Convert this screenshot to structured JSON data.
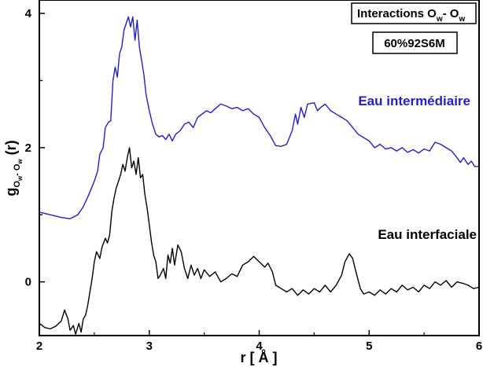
{
  "chart_data": {
    "type": "line",
    "title": "Interactions O",
    "title_parts": [
      "Interactions O",
      "w",
      "- O",
      "w"
    ],
    "sample_label": "60%92S6M",
    "xlabel": "r [ Å ]",
    "ylabel_parts": [
      "g",
      "O",
      "w",
      "- O",
      "w",
      " (r)"
    ],
    "xlim": [
      2,
      6
    ],
    "ylim": [
      -0.8,
      4.2
    ],
    "x_ticks": [
      2,
      3,
      4,
      5,
      6
    ],
    "y_ticks": [
      0,
      2,
      4
    ],
    "x_tick_labels": [
      "2",
      "3",
      "4",
      "5",
      "6"
    ],
    "y_tick_labels": [
      "0",
      "2",
      "4"
    ],
    "grid": false,
    "series": [
      {
        "name": "Eau intermédiaire",
        "color": "#1f1fd0",
        "points": [
          [
            2.0,
            1.04
          ],
          [
            2.1,
            1.0
          ],
          [
            2.2,
            0.96
          ],
          [
            2.28,
            0.94
          ],
          [
            2.35,
            1.0
          ],
          [
            2.4,
            1.12
          ],
          [
            2.45,
            1.3
          ],
          [
            2.5,
            1.5
          ],
          [
            2.53,
            1.65
          ],
          [
            2.55,
            1.9
          ],
          [
            2.58,
            2.0
          ],
          [
            2.6,
            2.3
          ],
          [
            2.63,
            2.38
          ],
          [
            2.65,
            2.4
          ],
          [
            2.67,
            3.0
          ],
          [
            2.69,
            3.2
          ],
          [
            2.71,
            3.05
          ],
          [
            2.73,
            3.4
          ],
          [
            2.75,
            3.5
          ],
          [
            2.77,
            3.75
          ],
          [
            2.79,
            3.85
          ],
          [
            2.81,
            3.95
          ],
          [
            2.83,
            3.8
          ],
          [
            2.85,
            3.95
          ],
          [
            2.87,
            3.6
          ],
          [
            2.89,
            3.9
          ],
          [
            2.91,
            3.5
          ],
          [
            2.93,
            3.3
          ],
          [
            2.95,
            3.1
          ],
          [
            2.97,
            2.8
          ],
          [
            3.0,
            2.55
          ],
          [
            3.03,
            2.35
          ],
          [
            3.06,
            2.2
          ],
          [
            3.09,
            2.16
          ],
          [
            3.12,
            2.18
          ],
          [
            3.15,
            2.12
          ],
          [
            3.18,
            2.2
          ],
          [
            3.21,
            2.1
          ],
          [
            3.24,
            2.2
          ],
          [
            3.28,
            2.25
          ],
          [
            3.32,
            2.35
          ],
          [
            3.36,
            2.38
          ],
          [
            3.4,
            2.3
          ],
          [
            3.44,
            2.45
          ],
          [
            3.48,
            2.5
          ],
          [
            3.52,
            2.55
          ],
          [
            3.56,
            2.52
          ],
          [
            3.6,
            2.58
          ],
          [
            3.65,
            2.65
          ],
          [
            3.7,
            2.62
          ],
          [
            3.75,
            2.58
          ],
          [
            3.8,
            2.6
          ],
          [
            3.85,
            2.55
          ],
          [
            3.9,
            2.58
          ],
          [
            3.95,
            2.5
          ],
          [
            4.0,
            2.45
          ],
          [
            4.05,
            2.3
          ],
          [
            4.1,
            2.18
          ],
          [
            4.15,
            2.03
          ],
          [
            4.2,
            2.02
          ],
          [
            4.25,
            2.05
          ],
          [
            4.3,
            2.25
          ],
          [
            4.33,
            2.5
          ],
          [
            4.35,
            2.35
          ],
          [
            4.38,
            2.6
          ],
          [
            4.41,
            2.45
          ],
          [
            4.44,
            2.65
          ],
          [
            4.5,
            2.67
          ],
          [
            4.53,
            2.55
          ],
          [
            4.56,
            2.6
          ],
          [
            4.6,
            2.65
          ],
          [
            4.65,
            2.55
          ],
          [
            4.7,
            2.5
          ],
          [
            4.75,
            2.45
          ],
          [
            4.8,
            2.4
          ],
          [
            4.85,
            2.3
          ],
          [
            4.9,
            2.2
          ],
          [
            4.95,
            2.15
          ],
          [
            5.0,
            2.1
          ],
          [
            5.05,
            2.0
          ],
          [
            5.1,
            2.05
          ],
          [
            5.15,
            1.98
          ],
          [
            5.2,
            2.0
          ],
          [
            5.25,
            1.95
          ],
          [
            5.3,
            2.0
          ],
          [
            5.35,
            1.93
          ],
          [
            5.4,
            1.97
          ],
          [
            5.45,
            1.92
          ],
          [
            5.5,
            1.98
          ],
          [
            5.55,
            1.95
          ],
          [
            5.6,
            2.08
          ],
          [
            5.65,
            2.05
          ],
          [
            5.7,
            2.0
          ],
          [
            5.75,
            1.95
          ],
          [
            5.8,
            1.85
          ],
          [
            5.83,
            1.78
          ],
          [
            5.86,
            1.85
          ],
          [
            5.9,
            1.75
          ],
          [
            5.93,
            1.8
          ],
          [
            5.96,
            1.72
          ],
          [
            6.0,
            1.72
          ]
        ]
      },
      {
        "name": "Eau interfaciale",
        "color": "#000000",
        "points": [
          [
            2.0,
            -0.62
          ],
          [
            2.05,
            -0.68
          ],
          [
            2.1,
            -0.7
          ],
          [
            2.15,
            -0.66
          ],
          [
            2.2,
            -0.58
          ],
          [
            2.23,
            -0.42
          ],
          [
            2.26,
            -0.55
          ],
          [
            2.28,
            -0.72
          ],
          [
            2.31,
            -0.65
          ],
          [
            2.33,
            -0.78
          ],
          [
            2.36,
            -0.62
          ],
          [
            2.38,
            -0.75
          ],
          [
            2.4,
            -0.55
          ],
          [
            2.42,
            -0.5
          ],
          [
            2.44,
            -0.35
          ],
          [
            2.46,
            -0.15
          ],
          [
            2.48,
            0.05
          ],
          [
            2.5,
            0.3
          ],
          [
            2.52,
            0.45
          ],
          [
            2.55,
            0.35
          ],
          [
            2.57,
            0.52
          ],
          [
            2.6,
            0.65
          ],
          [
            2.62,
            0.58
          ],
          [
            2.64,
            0.7
          ],
          [
            2.66,
            1.05
          ],
          [
            2.68,
            1.25
          ],
          [
            2.7,
            1.4
          ],
          [
            2.72,
            1.5
          ],
          [
            2.74,
            1.6
          ],
          [
            2.76,
            1.75
          ],
          [
            2.78,
            1.65
          ],
          [
            2.8,
            1.85
          ],
          [
            2.82,
            2.0
          ],
          [
            2.84,
            1.7
          ],
          [
            2.86,
            1.8
          ],
          [
            2.88,
            1.6
          ],
          [
            2.9,
            1.85
          ],
          [
            2.92,
            1.55
          ],
          [
            2.94,
            1.6
          ],
          [
            2.96,
            1.3
          ],
          [
            2.98,
            1.1
          ],
          [
            3.0,
            0.85
          ],
          [
            3.02,
            0.6
          ],
          [
            3.04,
            0.4
          ],
          [
            3.06,
            0.3
          ],
          [
            3.08,
            0.05
          ],
          [
            3.1,
            0.1
          ],
          [
            3.13,
            0.2
          ],
          [
            3.15,
            0.05
          ],
          [
            3.17,
            0.4
          ],
          [
            3.19,
            0.28
          ],
          [
            3.21,
            0.5
          ],
          [
            3.23,
            0.25
          ],
          [
            3.26,
            0.55
          ],
          [
            3.29,
            0.45
          ],
          [
            3.32,
            0.2
          ],
          [
            3.35,
            0.05
          ],
          [
            3.38,
            0.25
          ],
          [
            3.41,
            0.1
          ],
          [
            3.44,
            0.2
          ],
          [
            3.47,
            0.05
          ],
          [
            3.5,
            0.18
          ],
          [
            3.55,
            0.08
          ],
          [
            3.6,
            0.15
          ],
          [
            3.65,
            0.0
          ],
          [
            3.7,
            0.05
          ],
          [
            3.75,
            0.12
          ],
          [
            3.8,
            0.08
          ],
          [
            3.85,
            0.25
          ],
          [
            3.9,
            0.3
          ],
          [
            3.95,
            0.38
          ],
          [
            4.0,
            0.3
          ],
          [
            4.05,
            0.22
          ],
          [
            4.08,
            0.28
          ],
          [
            4.12,
            0.15
          ],
          [
            4.15,
            -0.05
          ],
          [
            4.2,
            -0.1
          ],
          [
            4.25,
            -0.15
          ],
          [
            4.3,
            -0.1
          ],
          [
            4.35,
            -0.2
          ],
          [
            4.4,
            -0.12
          ],
          [
            4.45,
            -0.18
          ],
          [
            4.5,
            -0.1
          ],
          [
            4.55,
            -0.15
          ],
          [
            4.6,
            -0.05
          ],
          [
            4.65,
            -0.15
          ],
          [
            4.7,
            -0.05
          ],
          [
            4.75,
            0.1
          ],
          [
            4.78,
            0.3
          ],
          [
            4.82,
            0.42
          ],
          [
            4.85,
            0.35
          ],
          [
            4.88,
            0.15
          ],
          [
            4.92,
            -0.1
          ],
          [
            4.95,
            -0.18
          ],
          [
            5.0,
            -0.15
          ],
          [
            5.05,
            -0.2
          ],
          [
            5.1,
            -0.12
          ],
          [
            5.15,
            -0.18
          ],
          [
            5.2,
            -0.1
          ],
          [
            5.25,
            -0.15
          ],
          [
            5.3,
            -0.05
          ],
          [
            5.35,
            -0.12
          ],
          [
            5.4,
            -0.08
          ],
          [
            5.45,
            -0.15
          ],
          [
            5.5,
            -0.05
          ],
          [
            5.55,
            -0.1
          ],
          [
            5.6,
            0.0
          ],
          [
            5.65,
            -0.05
          ],
          [
            5.7,
            0.02
          ],
          [
            5.75,
            -0.08
          ],
          [
            5.8,
            0.0
          ],
          [
            5.85,
            -0.02
          ],
          [
            5.9,
            -0.05
          ],
          [
            5.95,
            -0.1
          ],
          [
            6.0,
            -0.08
          ]
        ]
      }
    ],
    "annotations": [
      {
        "text": "Eau intermédiaire",
        "color": "#1f1fd0"
      },
      {
        "text": "Eau interfaciale",
        "color": "#000000"
      }
    ]
  }
}
